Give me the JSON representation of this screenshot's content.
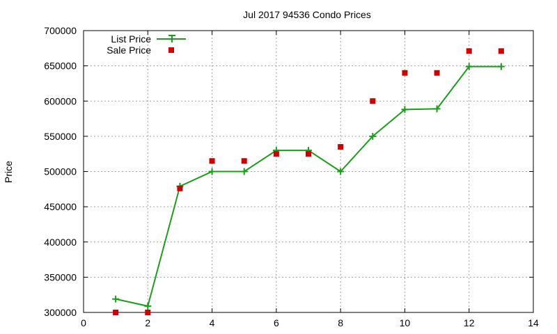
{
  "chart_data": {
    "type": "line",
    "title": "Jul 2017 94536 Condo Prices",
    "xlabel": "",
    "ylabel": "Price",
    "xlim": [
      0,
      14
    ],
    "ylim": [
      300000,
      700000
    ],
    "x_ticks": [
      "0",
      "2",
      "4",
      "6",
      "8",
      "10",
      "12",
      "14"
    ],
    "y_ticks": [
      "300000",
      "350000",
      "400000",
      "450000",
      "500000",
      "550000",
      "600000",
      "650000",
      "700000"
    ],
    "grid": true,
    "legend_position": "top-left",
    "series": [
      {
        "name": "List Price",
        "style": "line+points",
        "color": "#1a9e1a",
        "x": [
          1,
          2,
          3,
          4,
          5,
          6,
          7,
          8,
          9,
          10,
          11,
          12,
          13
        ],
        "y": [
          319000,
          309000,
          479000,
          500000,
          500000,
          530000,
          530000,
          500000,
          550000,
          588000,
          589000,
          649000,
          649000
        ]
      },
      {
        "name": "Sale Price",
        "style": "points",
        "color": "#cc0000",
        "x": [
          1,
          2,
          3,
          4,
          5,
          6,
          7,
          8,
          9,
          10,
          11,
          12,
          13
        ],
        "y": [
          300000,
          300000,
          476000,
          515000,
          515000,
          525000,
          525000,
          535000,
          600000,
          640000,
          640000,
          671000,
          671000
        ]
      }
    ]
  }
}
